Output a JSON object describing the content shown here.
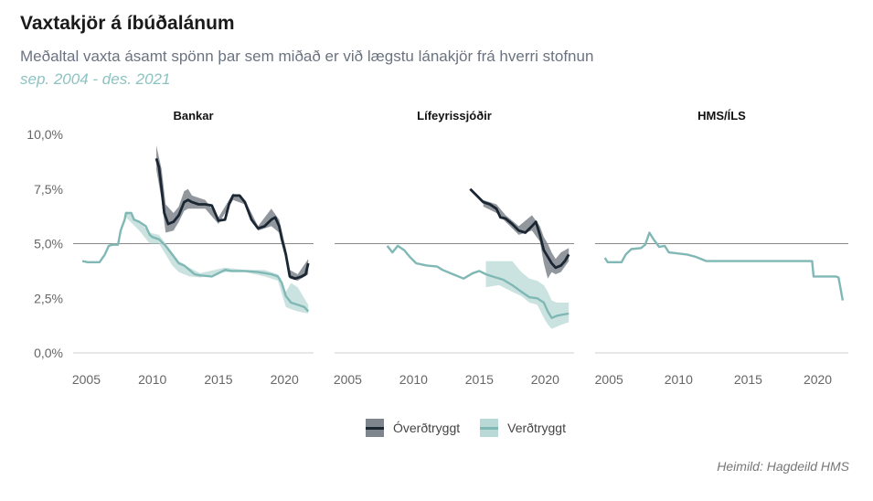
{
  "header": {
    "title": "Vaxtakjör á íbúðalánum",
    "subtitle": "Meðaltal vaxta ásamt spönn þar sem miðað er við lægstu lánakjör frá hverri stofnun",
    "period": "sep. 2004 - des. 2021"
  },
  "source": "Heimild: Hagdeild HMS",
  "colors": {
    "overtryggt": "#1b2633",
    "overtryggt_band": "#7f858c",
    "verdtryggt": "#7fb8b5",
    "verdtryggt_band": "#b9d9d6",
    "axis_text": "#666666",
    "ref_line": "#8a8a8a",
    "axis_line": "#cfcfcf",
    "period_text": "#8cc3c1"
  },
  "chart_data": {
    "type": "line",
    "facet_titles": [
      "Bankar",
      "Lífeyrissjóðir",
      "HMS/ÍLS"
    ],
    "x_ticks": [
      2005,
      2010,
      2015,
      2020
    ],
    "x_range": [
      2004.0,
      2022.2
    ],
    "y_ticks": [
      0,
      2.5,
      5,
      7.5,
      10
    ],
    "y_tick_labels": [
      "0,0%",
      "2,5%",
      "5,0%",
      "7,5%",
      "10,0%"
    ],
    "y_range": [
      0,
      10
    ],
    "reference_line_y": 5,
    "legend": [
      "Óverðtryggt",
      "Verðtryggt"
    ],
    "legend_position": "bottom",
    "grid": false,
    "panels": [
      {
        "name": "Bankar",
        "series": [
          {
            "name": "Óverðtryggt",
            "points": [
              [
                2010.3,
                8.9
              ],
              [
                2010.5,
                8.5
              ],
              [
                2010.7,
                7.5
              ],
              [
                2010.9,
                6.4
              ],
              [
                2011.2,
                5.9
              ],
              [
                2011.6,
                6.0
              ],
              [
                2012.0,
                6.3
              ],
              [
                2012.4,
                6.9
              ],
              [
                2012.7,
                7.0
              ],
              [
                2013.0,
                6.9
              ],
              [
                2013.5,
                6.8
              ],
              [
                2014.0,
                6.8
              ],
              [
                2014.5,
                6.75
              ],
              [
                2015.0,
                6.05
              ],
              [
                2015.5,
                6.1
              ],
              [
                2015.8,
                6.8
              ],
              [
                2016.1,
                7.2
              ],
              [
                2016.6,
                7.2
              ],
              [
                2017.0,
                6.9
              ],
              [
                2017.5,
                6.1
              ],
              [
                2018.0,
                5.7
              ],
              [
                2018.5,
                5.8
              ],
              [
                2019.0,
                6.1
              ],
              [
                2019.3,
                6.2
              ],
              [
                2019.6,
                5.8
              ],
              [
                2019.8,
                5.2
              ],
              [
                2020.1,
                4.5
              ],
              [
                2020.4,
                3.5
              ],
              [
                2020.8,
                3.4
              ],
              [
                2021.3,
                3.5
              ],
              [
                2021.6,
                3.6
              ],
              [
                2021.8,
                4.1
              ]
            ],
            "band": [
              [
                2010.3,
                8.4,
                9.5
              ],
              [
                2010.7,
                7.0,
                8.4
              ],
              [
                2011.0,
                5.5,
                6.8
              ],
              [
                2011.6,
                5.6,
                6.4
              ],
              [
                2012.0,
                6.0,
                6.7
              ],
              [
                2012.4,
                6.5,
                7.4
              ],
              [
                2012.7,
                6.6,
                7.5
              ],
              [
                2013.0,
                6.6,
                7.2
              ],
              [
                2014.0,
                6.6,
                7.0
              ],
              [
                2015.0,
                5.9,
                6.2
              ],
              [
                2016.1,
                7.0,
                7.3
              ],
              [
                2017.0,
                6.8,
                7.0
              ],
              [
                2018.0,
                5.6,
                5.8
              ],
              [
                2019.0,
                5.8,
                6.6
              ],
              [
                2019.6,
                5.5,
                6.1
              ],
              [
                2020.1,
                4.3,
                4.8
              ],
              [
                2020.4,
                3.4,
                3.8
              ],
              [
                2021.0,
                3.3,
                3.6
              ],
              [
                2021.8,
                3.6,
                4.3
              ]
            ]
          },
          {
            "name": "Verðtryggt",
            "points": [
              [
                2004.7,
                4.2
              ],
              [
                2005.1,
                4.15
              ],
              [
                2006.0,
                4.15
              ],
              [
                2006.4,
                4.5
              ],
              [
                2006.7,
                4.9
              ],
              [
                2007.0,
                4.95
              ],
              [
                2007.4,
                4.95
              ],
              [
                2007.6,
                5.6
              ],
              [
                2007.9,
                6.1
              ],
              [
                2008.0,
                6.4
              ],
              [
                2008.4,
                6.4
              ],
              [
                2008.6,
                6.1
              ],
              [
                2009.0,
                6.0
              ],
              [
                2009.5,
                5.8
              ],
              [
                2009.8,
                5.4
              ],
              [
                2010.0,
                5.3
              ],
              [
                2010.5,
                5.2
              ],
              [
                2011.0,
                4.9
              ],
              [
                2011.5,
                4.5
              ],
              [
                2012.0,
                4.1
              ],
              [
                2012.4,
                4.0
              ],
              [
                2012.8,
                3.8
              ],
              [
                2013.2,
                3.6
              ],
              [
                2013.6,
                3.55
              ],
              [
                2014.5,
                3.5
              ],
              [
                2015.0,
                3.65
              ],
              [
                2015.5,
                3.8
              ],
              [
                2016.0,
                3.75
              ],
              [
                2017.0,
                3.75
              ],
              [
                2018.0,
                3.7
              ],
              [
                2019.0,
                3.6
              ],
              [
                2019.5,
                3.5
              ],
              [
                2019.8,
                3.2
              ],
              [
                2020.1,
                2.6
              ],
              [
                2020.5,
                2.3
              ],
              [
                2021.0,
                2.2
              ],
              [
                2021.5,
                2.1
              ],
              [
                2021.8,
                1.9
              ]
            ],
            "band": [
              [
                2008.0,
                6.2,
                6.5
              ],
              [
                2009.0,
                5.6,
                6.0
              ],
              [
                2009.8,
                5.0,
                5.5
              ],
              [
                2010.5,
                5.0,
                5.4
              ],
              [
                2011.0,
                4.5,
                5.0
              ],
              [
                2011.5,
                4.0,
                4.6
              ],
              [
                2012.0,
                3.7,
                4.2
              ],
              [
                2012.8,
                3.5,
                3.9
              ],
              [
                2013.6,
                3.45,
                3.65
              ],
              [
                2015.5,
                3.7,
                3.9
              ],
              [
                2017.0,
                3.7,
                3.8
              ],
              [
                2018.5,
                3.5,
                3.8
              ],
              [
                2019.5,
                3.3,
                3.6
              ],
              [
                2020.1,
                2.1,
                2.8
              ],
              [
                2020.5,
                2.0,
                3.2
              ],
              [
                2021.0,
                1.9,
                3.0
              ],
              [
                2021.8,
                1.8,
                2.2
              ]
            ]
          }
        ]
      },
      {
        "name": "Lífeyrissjóðir",
        "series": [
          {
            "name": "Óverðtryggt",
            "points": [
              [
                2014.3,
                7.5
              ],
              [
                2014.8,
                7.2
              ],
              [
                2015.3,
                6.9
              ],
              [
                2015.8,
                6.8
              ],
              [
                2016.3,
                6.6
              ],
              [
                2016.6,
                6.2
              ],
              [
                2017.0,
                6.15
              ],
              [
                2017.5,
                5.9
              ],
              [
                2018.0,
                5.6
              ],
              [
                2018.5,
                5.5
              ],
              [
                2019.0,
                5.8
              ],
              [
                2019.3,
                6.0
              ],
              [
                2019.6,
                5.4
              ],
              [
                2019.9,
                4.7
              ],
              [
                2020.2,
                4.4
              ],
              [
                2020.5,
                4.1
              ],
              [
                2020.8,
                3.9
              ],
              [
                2021.2,
                4.0
              ],
              [
                2021.5,
                4.2
              ],
              [
                2021.8,
                4.5
              ]
            ],
            "band": [
              [
                2015.3,
                6.7,
                7.0
              ],
              [
                2016.3,
                6.4,
                6.8
              ],
              [
                2017.0,
                6.0,
                6.3
              ],
              [
                2018.0,
                5.4,
                5.8
              ],
              [
                2019.0,
                5.6,
                6.3
              ],
              [
                2019.6,
                5.1,
                5.8
              ],
              [
                2019.9,
                4.1,
                5.3
              ],
              [
                2020.2,
                3.4,
                5.0
              ],
              [
                2020.5,
                3.7,
                4.6
              ],
              [
                2020.8,
                3.6,
                4.3
              ],
              [
                2021.2,
                3.7,
                4.6
              ],
              [
                2021.8,
                4.2,
                4.8
              ]
            ]
          },
          {
            "name": "Verðtryggt",
            "points": [
              [
                2008.0,
                4.9
              ],
              [
                2008.4,
                4.6
              ],
              [
                2008.8,
                4.9
              ],
              [
                2009.3,
                4.7
              ],
              [
                2009.7,
                4.4
              ],
              [
                2010.2,
                4.1
              ],
              [
                2011.0,
                4.0
              ],
              [
                2011.8,
                3.95
              ],
              [
                2012.2,
                3.8
              ],
              [
                2013.0,
                3.6
              ],
              [
                2013.8,
                3.4
              ],
              [
                2014.5,
                3.65
              ],
              [
                2015.0,
                3.75
              ],
              [
                2015.5,
                3.6
              ],
              [
                2016.0,
                3.5
              ],
              [
                2016.8,
                3.35
              ],
              [
                2017.5,
                3.1
              ],
              [
                2018.2,
                2.8
              ],
              [
                2018.8,
                2.55
              ],
              [
                2019.4,
                2.5
              ],
              [
                2019.9,
                2.3
              ],
              [
                2020.2,
                1.9
              ],
              [
                2020.5,
                1.6
              ],
              [
                2020.9,
                1.7
              ],
              [
                2021.3,
                1.75
              ],
              [
                2021.8,
                1.8
              ]
            ],
            "band": [
              [
                2015.5,
                3.0,
                4.2
              ],
              [
                2016.5,
                3.1,
                4.2
              ],
              [
                2017.5,
                2.8,
                4.2
              ],
              [
                2018.2,
                2.6,
                3.7
              ],
              [
                2018.8,
                2.3,
                3.4
              ],
              [
                2019.4,
                2.2,
                3.3
              ],
              [
                2019.9,
                1.6,
                3.1
              ],
              [
                2020.2,
                1.3,
                2.8
              ],
              [
                2020.5,
                1.1,
                2.4
              ],
              [
                2020.9,
                1.2,
                2.3
              ],
              [
                2021.3,
                1.3,
                2.3
              ],
              [
                2021.8,
                1.4,
                2.3
              ]
            ]
          }
        ]
      },
      {
        "name": "HMS/ÍLS",
        "series": [
          {
            "name": "Verðtryggt",
            "points": [
              [
                2004.7,
                4.35
              ],
              [
                2004.9,
                4.15
              ],
              [
                2005.9,
                4.15
              ],
              [
                2006.2,
                4.5
              ],
              [
                2006.6,
                4.75
              ],
              [
                2007.3,
                4.8
              ],
              [
                2007.6,
                4.95
              ],
              [
                2007.9,
                5.5
              ],
              [
                2008.2,
                5.2
              ],
              [
                2008.6,
                4.85
              ],
              [
                2009.0,
                4.9
              ],
              [
                2009.3,
                4.6
              ],
              [
                2010.0,
                4.55
              ],
              [
                2010.6,
                4.5
              ],
              [
                2011.2,
                4.4
              ],
              [
                2012.0,
                4.2
              ],
              [
                2013.0,
                4.2
              ],
              [
                2014.0,
                4.2
              ],
              [
                2015.0,
                4.2
              ],
              [
                2016.0,
                4.2
              ],
              [
                2017.0,
                4.2
              ],
              [
                2018.0,
                4.2
              ],
              [
                2019.0,
                4.2
              ],
              [
                2019.6,
                4.2
              ],
              [
                2019.7,
                3.5
              ],
              [
                2020.5,
                3.5
              ],
              [
                2021.3,
                3.5
              ],
              [
                2021.5,
                3.45
              ],
              [
                2021.8,
                2.4
              ]
            ],
            "band": []
          }
        ]
      }
    ]
  }
}
